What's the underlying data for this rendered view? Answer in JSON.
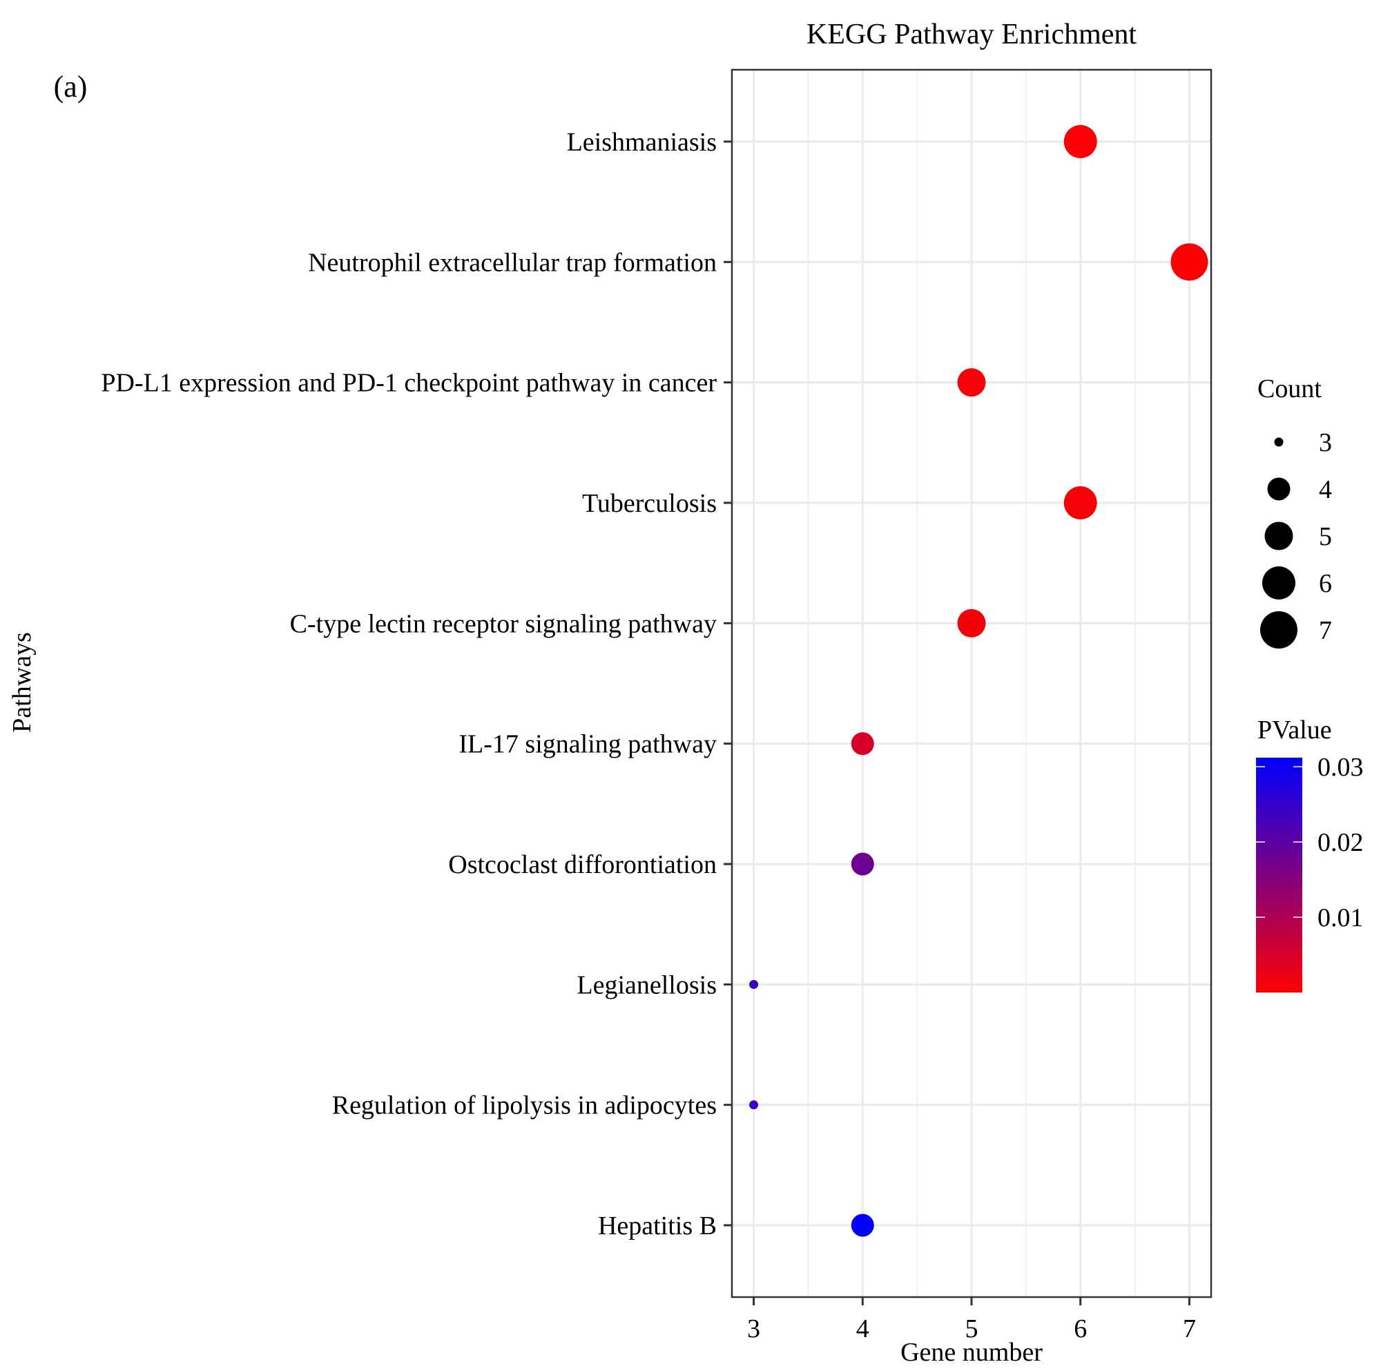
{
  "panel_label": "(a)",
  "chart_data": {
    "type": "scatter",
    "title": "KEGG Pathway Enrichment",
    "xlabel": "Gene number",
    "ylabel": "Pathways",
    "xlim": [
      2.8,
      7.2
    ],
    "xticks": [
      3,
      4,
      5,
      6,
      7
    ],
    "grid": true,
    "categories": [
      "Leishmaniasis",
      "Neutrophil extracellular trap formation",
      "PD-L1 expression and PD-1 checkpoint pathway in cancer",
      "Tuberculosis",
      "C-type lectin receptor signaling pathway",
      "IL-17 signaling pathway",
      "Ostcoclast difforontiation",
      "Legianellosis",
      "Regulation of lipolysis in adipocytes",
      "Hepatitis B"
    ],
    "gene_number": [
      6,
      7,
      5,
      6,
      5,
      4,
      4,
      3,
      3,
      4
    ],
    "count": [
      6,
      7,
      5,
      6,
      5,
      4,
      4,
      3,
      3,
      4
    ],
    "pvalue": [
      0.0005,
      0.0003,
      0.001,
      0.0008,
      0.0012,
      0.005,
      0.018,
      0.024,
      0.024,
      0.031
    ],
    "size_legend": {
      "title": "Count",
      "values": [
        3,
        4,
        5,
        6,
        7
      ],
      "labels": [
        "3",
        "4",
        "5",
        "6",
        "7"
      ]
    },
    "color_legend": {
      "title": "PValue",
      "range": [
        0.0,
        0.0312
      ],
      "ticks": [
        0.03,
        0.02,
        0.01
      ],
      "tick_labels": [
        "0.03",
        "0.02",
        "0.01"
      ],
      "low_color": "#ff0000",
      "high_color": "#0000ff"
    },
    "legend_placement": "right"
  }
}
